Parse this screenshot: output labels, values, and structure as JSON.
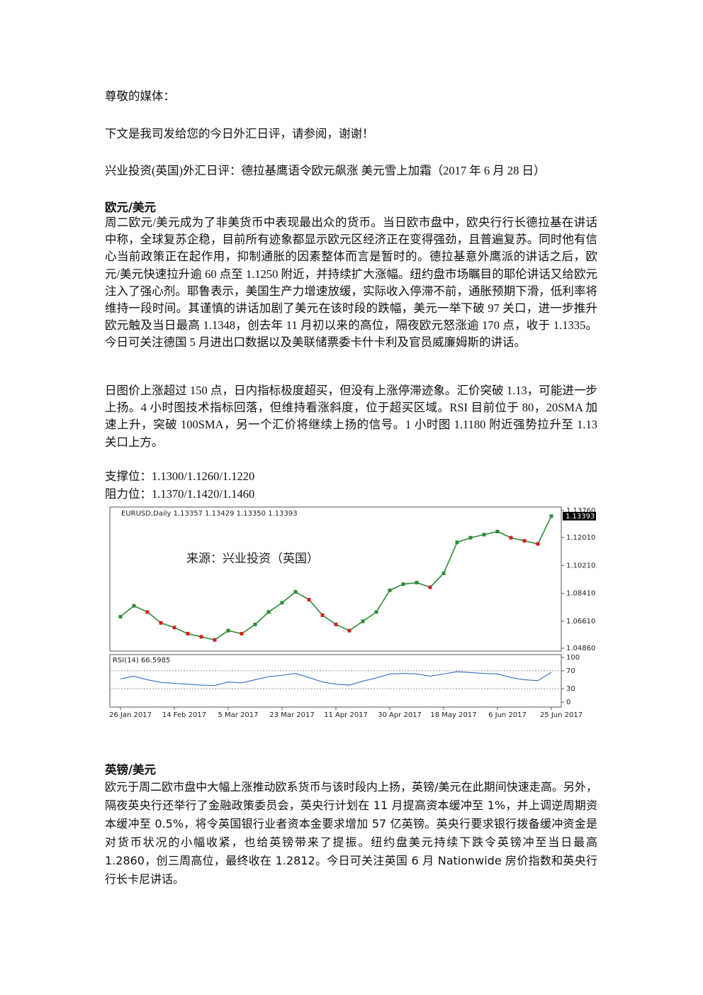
{
  "greeting": "尊敬的媒体：",
  "intro": "下文是我司发给您的今日外汇日评，请参阅，谢谢！",
  "headline": "兴业投资(英国)外汇日评：德拉基鹰语令欧元飙涨 美元雪上加霜（2017 年 6 月 28 日）",
  "eur": {
    "heading": "欧元/美元",
    "paragraphs": [
      "周二欧元/美元成为了非美货币中表现最出众的货币。当日欧市盘中，欧央行行长德拉基在讲话中称，全球复苏企稳，目前所有迹象都显示欧元区经济正在变得强劲，且普遍复苏。同时他有信心当前政策正在起作用，抑制通胀的因素整体而言是暂时的。德拉基意外鹰派的讲话之后，欧元/美元快速拉升逾 60 点至 1.1250 附近，并持续扩大涨幅。纽约盘市场瞩目的耶伦讲话又给欧元注入了强心剂。耶鲁表示，美国生产力增速放缓，实际收入停滞不前，通胀预期下滑，低利率将维持一段时间。其谨慎的讲话加剧了美元在该时段的跌幅，美元一举下破 97 关口，进一步推升欧元触及当日最高 1.1348，创去年 11 月初以来的高位，隔夜欧元怒涨逾 170 点，收于 1.1335。今日可关注德国 5 月进出口数据以及美联储票委卡什卡利及官员威廉姆斯的讲话。",
      "日图价上涨超过 150 点，日内指标极度超买，但没有上涨停滞迹象。汇价突破 1.13，可能进一步上扬。4 小时图技术指标回落，但维持看涨斜度，位于超买区域。RSI 目前位于 80，20SMA 加速上升，突破 100SMA，另一个汇价将继续上扬的信号。1 小时图 1.1180 附近强势拉升至 1.13 关口上方。"
    ],
    "support": "支撑位：1.1300/1.1260/1.1220",
    "resistance": "阻力位：1.1370/1.1420/1.1460"
  },
  "chart_data": {
    "type": "line",
    "title": "EURUSD,Daily 1.13357 1.13429 1.13350 1.13393",
    "annotation": "来源：兴业投资（英国）",
    "categories": [
      "26 Jan 2017",
      null,
      null,
      null,
      "14 Feb 2017",
      null,
      null,
      null,
      "5 Mar 2017",
      null,
      null,
      null,
      "23 Mar 2017",
      null,
      null,
      null,
      "11 Apr 2017",
      null,
      null,
      null,
      "30 Apr 2017",
      null,
      null,
      null,
      "18 May 2017",
      null,
      null,
      null,
      "6 Jun 2017",
      null,
      null,
      null,
      "25 Jun 2017"
    ],
    "values": [
      1.069,
      1.076,
      1.072,
      1.065,
      1.062,
      1.058,
      1.056,
      1.054,
      1.06,
      1.058,
      1.064,
      1.072,
      1.078,
      1.085,
      1.08,
      1.07,
      1.064,
      1.06,
      1.066,
      1.072,
      1.086,
      1.09,
      1.091,
      1.088,
      1.097,
      1.117,
      1.12,
      1.122,
      1.124,
      1.12,
      1.118,
      1.116,
      1.13393
    ],
    "color": "#2e8b3a",
    "ylim": [
      1.0468,
      1.1398
    ],
    "yticks": [
      {
        "value": 1.0486,
        "label": "1.04860"
      },
      {
        "value": 1.0661,
        "label": "1.06610"
      },
      {
        "value": 1.0841,
        "label": "1.08410"
      },
      {
        "value": 1.1021,
        "label": "1.10210"
      },
      {
        "value": 1.1201,
        "label": "1.12010"
      },
      {
        "value": 1.1376,
        "label": "1.13760"
      }
    ],
    "price_tag": 1.13393,
    "rsi": {
      "title": "RSI(14) 66.5985",
      "values": [
        52,
        58,
        50,
        44,
        42,
        40,
        38,
        37,
        45,
        43,
        50,
        57,
        60,
        64,
        55,
        45,
        40,
        38,
        47,
        54,
        63,
        64,
        63,
        58,
        63,
        68,
        66,
        64,
        63,
        55,
        50,
        48,
        66.5985
      ],
      "color": "#1f5fbf",
      "ylim": [
        0,
        100
      ],
      "yticks": [
        0,
        30,
        70,
        100
      ]
    }
  },
  "gbp": {
    "heading": "英镑/美元",
    "paragraph": "欧元于周二欧市盘中大幅上涨推动欧系货币与该时段内上扬，英镑/美元在此期间快速走高。另外，隔夜英央行还举行了金融政策委员会，英央行计划在 11 月提高资本缓冲至 1%，并上调逆周期资本缓冲至 0.5%，将令英国银行业者资本金要求增加 57 亿英镑。英央行要求银行拨备缓冲资金是对货币状况的小幅收紧，也给英镑带来了提振。纽约盘美元持续下跌令英镑冲至当日最高 1.2860，创三周高位，最终收在 1.2812。今日可关注英国 6 月 Nationwide 房价指数和英央行行长卡尼讲话。"
  }
}
